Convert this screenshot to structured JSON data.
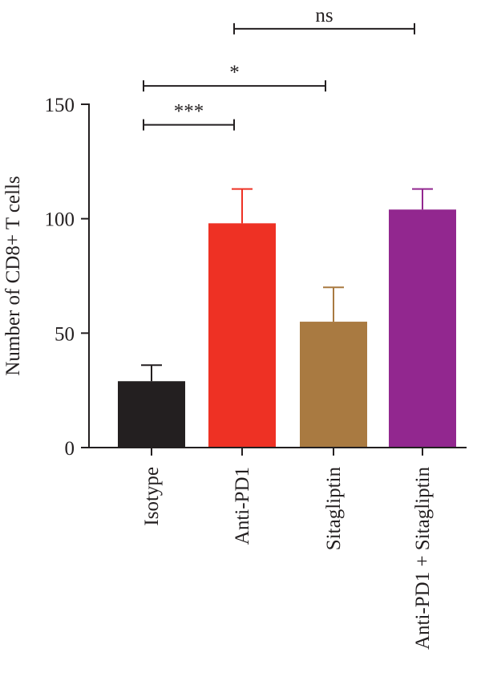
{
  "chart_data": {
    "type": "bar",
    "title": "",
    "xlabel": "",
    "ylabel": "Number of CD8+ T cells",
    "ylim": [
      0,
      150
    ],
    "yticks": [
      0,
      50,
      100,
      150
    ],
    "grid": false,
    "categories": [
      "Isotype",
      "Anti-PD1",
      "Sitagliptin",
      "Anti-PD1 + Sitagliptin"
    ],
    "values": [
      29,
      98,
      55,
      104
    ],
    "errors": [
      7,
      15,
      15,
      9
    ],
    "colors": [
      "#231f20",
      "#ee3124",
      "#a97a41",
      "#92278f"
    ],
    "significance": [
      {
        "from": 0,
        "to": 1,
        "label": "***",
        "y": 141
      },
      {
        "from": 0,
        "to": 2,
        "label": "*",
        "y": 158
      },
      {
        "from": 1,
        "to": 3,
        "label": "ns",
        "y": 183
      }
    ]
  }
}
